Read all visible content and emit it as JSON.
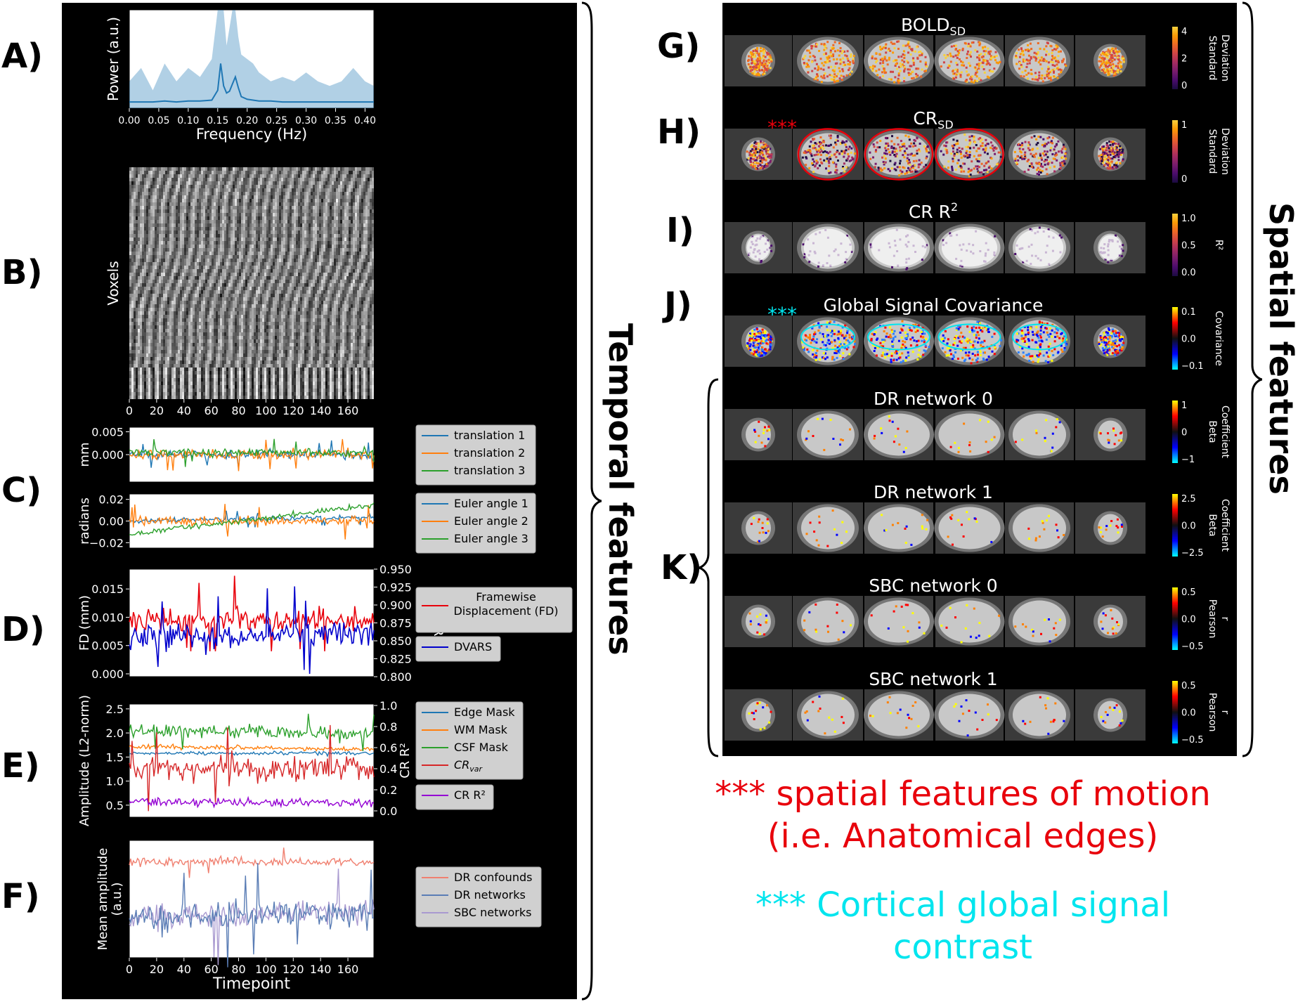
{
  "panel_labels": {
    "A": "A)",
    "B": "B)",
    "C": "C)",
    "D": "D)",
    "E": "E)",
    "F": "F)",
    "G": "G)",
    "H": "H)",
    "I": "I)",
    "J": "J)",
    "K": "K)"
  },
  "brace_labels": {
    "temporal": "Temporal features",
    "spatial": "Spatial features"
  },
  "notes": {
    "motion_stars": "***",
    "motion_text_line1": " spatial features of motion",
    "motion_text_line2": "(i.e. Anatomical edges)",
    "cortical_stars": "***",
    "cortical_text_line1": " Cortical global signal",
    "cortical_text_line2": "contrast"
  },
  "colors": {
    "motion_red": "#e8000b",
    "cortical_cyan": "#00e5ee",
    "panel_bg": "#000000"
  },
  "spatial_maps": [
    {
      "id": "G",
      "title": "BOLD",
      "title_sub": "SD",
      "cb_ticks": [
        "4",
        "2",
        "0"
      ],
      "cb_label": "Standard Deviation",
      "cmap": "inferno",
      "marker": "none"
    },
    {
      "id": "H",
      "title": "CR",
      "title_sub": "SD",
      "cb_ticks": [
        "1",
        "0"
      ],
      "cb_label": "Standard Deviation",
      "cmap": "inferno",
      "marker": "red"
    },
    {
      "id": "I",
      "title": "CR R",
      "title_sup": "2",
      "cb_ticks": [
        "1.0",
        "0.5",
        "0.0"
      ],
      "cb_label": "R²",
      "cmap": "inferno",
      "marker": "none"
    },
    {
      "id": "J",
      "title": "Global Signal Covariance",
      "cb_ticks": [
        "0.1",
        "0.0",
        "−0.1"
      ],
      "cb_label": "Covariance",
      "cmap": "coolwarm",
      "marker": "cyan"
    },
    {
      "id": "K0",
      "title": "DR network 0",
      "cb_ticks": [
        "1",
        "0",
        "−1"
      ],
      "cb_label": "Beta Coefficient",
      "cmap": "coolwarm",
      "marker": "none"
    },
    {
      "id": "K1",
      "title": "DR network 1",
      "cb_ticks": [
        "2.5",
        "0.0",
        "−2.5"
      ],
      "cb_label": "Beta Coefficient",
      "cmap": "coolwarm",
      "marker": "none"
    },
    {
      "id": "K2",
      "title": "SBC network 0",
      "cb_ticks": [
        "0.5",
        "0.0",
        "−0.5"
      ],
      "cb_label": "Pearson r",
      "cmap": "coolwarm",
      "marker": "none"
    },
    {
      "id": "K3",
      "title": "SBC network 1",
      "cb_ticks": [
        "0.5",
        "0.0",
        "−0.5"
      ],
      "cb_label": "Pearson r",
      "cmap": "coolwarm",
      "marker": "none"
    }
  ],
  "chart_data": [
    {
      "id": "A",
      "type": "area",
      "xlabel": "Frequency (Hz)",
      "ylabel": "Power (a.u.)",
      "xlim": [
        0,
        0.415
      ],
      "xticks": [
        "0.00",
        "0.05",
        "0.10",
        "0.15",
        "0.20",
        "0.25",
        "0.30",
        "0.35",
        "0.40"
      ],
      "x": [
        0,
        0.02,
        0.04,
        0.06,
        0.08,
        0.1,
        0.12,
        0.14,
        0.15,
        0.155,
        0.16,
        0.165,
        0.17,
        0.175,
        0.18,
        0.185,
        0.19,
        0.2,
        0.21,
        0.22,
        0.24,
        0.26,
        0.28,
        0.3,
        0.32,
        0.34,
        0.36,
        0.38,
        0.4,
        0.415
      ],
      "mean": [
        0.02,
        0.02,
        0.02,
        0.03,
        0.02,
        0.03,
        0.03,
        0.04,
        0.15,
        0.45,
        0.2,
        0.12,
        0.14,
        0.22,
        0.3,
        0.18,
        0.08,
        0.05,
        0.04,
        0.03,
        0.03,
        0.02,
        0.02,
        0.02,
        0.02,
        0.02,
        0.02,
        0.02,
        0.02,
        0.02
      ],
      "upper": [
        0.3,
        0.45,
        0.2,
        0.5,
        0.3,
        0.45,
        0.35,
        0.55,
        1.1,
        1.1,
        1.1,
        0.7,
        0.9,
        1.1,
        1.1,
        0.8,
        0.6,
        0.55,
        0.5,
        0.4,
        0.3,
        0.35,
        0.3,
        0.4,
        0.3,
        0.25,
        0.3,
        0.45,
        0.3,
        0.25
      ],
      "series": [
        {
          "name": "",
          "color": "#1f77b4"
        }
      ]
    },
    {
      "id": "B",
      "type": "heatmap",
      "ylabel": "Voxels",
      "xticks": [
        0,
        20,
        40,
        60,
        80,
        100,
        120,
        140,
        160
      ],
      "xlim": [
        0,
        179
      ]
    },
    {
      "id": "C1",
      "type": "line",
      "ylabel": "mm",
      "ylim": [
        -0.006,
        0.006
      ],
      "yticks": [
        "0.005",
        "0.000"
      ],
      "ytick_vals": [
        0.005,
        0.0
      ],
      "xlim": [
        0,
        179
      ],
      "series": [
        {
          "name": "translation 1",
          "color": "#1f77b4"
        },
        {
          "name": "translation 2",
          "color": "#ff7f0e"
        },
        {
          "name": "translation 3",
          "color": "#2ca02c"
        }
      ]
    },
    {
      "id": "C2",
      "type": "line",
      "ylabel": "radians",
      "ylim": [
        -0.025,
        0.025
      ],
      "yticks": [
        "0.02",
        "0.00",
        "−0.02"
      ],
      "ytick_vals": [
        0.02,
        0,
        -0.02
      ],
      "xlim": [
        0,
        179
      ],
      "series": [
        {
          "name": "Euler angle 1",
          "color": "#1f77b4"
        },
        {
          "name": "Euler angle 2",
          "color": "#ff7f0e"
        },
        {
          "name": "Euler angle 3",
          "color": "#2ca02c"
        }
      ]
    },
    {
      "id": "D",
      "type": "line",
      "ylabel": "FD (mm)",
      "ylabel_right": "DVARS",
      "ylim": [
        -0.0005,
        0.0185
      ],
      "yticks": [
        "0.015",
        "0.010",
        "0.005",
        "0.000"
      ],
      "ytick_vals": [
        0.015,
        0.01,
        0.005,
        0
      ],
      "ylim_right": [
        0.8,
        0.95
      ],
      "yticks_right": [
        "0.950",
        "0.925",
        "0.900",
        "0.875",
        "0.850",
        "0.825",
        "0.800"
      ],
      "xlim": [
        0,
        179
      ],
      "series": [
        {
          "name": "Framewise Displacement (FD)",
          "color": "#e8000b"
        },
        {
          "name": "DVARS",
          "color": "#0000cc"
        }
      ]
    },
    {
      "id": "E",
      "type": "line",
      "ylabel": "Amplitude (L2-norm)",
      "ylabel_right": "CR R²",
      "ylim": [
        0.25,
        2.6
      ],
      "yticks": [
        "2.5",
        "2.0",
        "1.5",
        "1.0",
        "0.5"
      ],
      "ytick_vals": [
        2.5,
        2.0,
        1.5,
        1.0,
        0.5
      ],
      "ylim_right": [
        0,
        1
      ],
      "yticks_right": [
        "1.0",
        "0.8",
        "0.6",
        "0.4",
        "0.2",
        "0.0"
      ],
      "xlim": [
        0,
        179
      ],
      "series": [
        {
          "name": "Edge Mask",
          "color": "#1f77b4"
        },
        {
          "name": "WM Mask",
          "color": "#ff7f0e"
        },
        {
          "name": "CSF Mask",
          "color": "#2ca02c"
        },
        {
          "name": "CR",
          "name_sub": "var",
          "color": "#d62728"
        },
        {
          "name": "CR R²",
          "color": "#9400d3"
        }
      ]
    },
    {
      "id": "F",
      "type": "line",
      "ylabel": "Mean amplitude (a.u.)",
      "xlabel": "Timepoint",
      "xticks": [
        0,
        20,
        40,
        60,
        80,
        100,
        120,
        140,
        160
      ],
      "xlim": [
        0,
        179
      ],
      "series": [
        {
          "name": "DR confounds",
          "color": "#f08070"
        },
        {
          "name": "DR networks",
          "color": "#5a7db5"
        },
        {
          "name": "SBC networks",
          "color": "#a99ad0"
        }
      ]
    }
  ]
}
